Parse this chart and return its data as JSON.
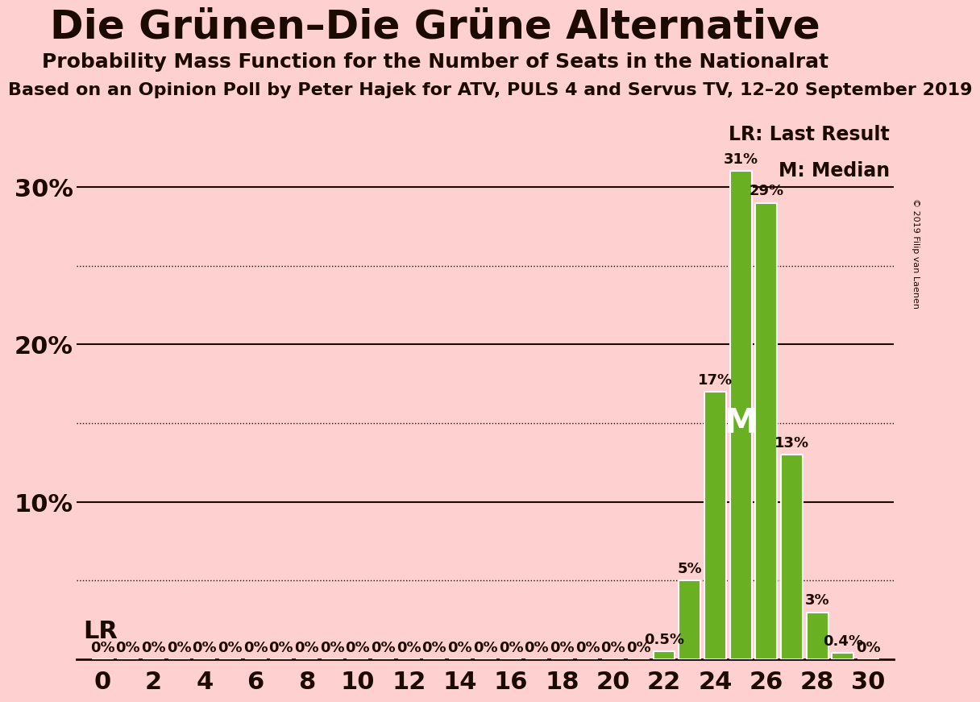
{
  "title": "Die Grünen–Die Grüne Alternative",
  "subtitle": "Probability Mass Function for the Number of Seats in the Nationalrat",
  "source_line": "Based on an Opinion Poll by Peter Hajek for ATV, PULS 4 and Servus TV, 12–20 September 2019",
  "copyright": "© 2019 Filip van Laenen",
  "background_color": "#FFD0D0",
  "bar_color": "#6ab023",
  "bar_edge_color": "#ffffff",
  "seats": [
    0,
    1,
    2,
    3,
    4,
    5,
    6,
    7,
    8,
    9,
    10,
    11,
    12,
    13,
    14,
    15,
    16,
    17,
    18,
    19,
    20,
    21,
    22,
    23,
    24,
    25,
    26,
    27,
    28,
    29,
    30
  ],
  "probabilities": [
    0,
    0,
    0,
    0,
    0,
    0,
    0,
    0,
    0,
    0,
    0,
    0,
    0,
    0,
    0,
    0,
    0,
    0,
    0,
    0,
    0,
    0,
    0.5,
    5,
    17,
    31,
    29,
    13,
    3,
    0.4,
    0
  ],
  "median_seat": 25,
  "ylim_max": 35,
  "solid_yticks": [
    10,
    20,
    30
  ],
  "dotted_yticks": [
    5,
    15,
    25
  ],
  "title_fontsize": 36,
  "subtitle_fontsize": 18,
  "source_fontsize": 16,
  "bar_label_fontsize": 13,
  "ytick_fontsize": 22,
  "xtick_fontsize": 22,
  "legend_fontsize": 17
}
